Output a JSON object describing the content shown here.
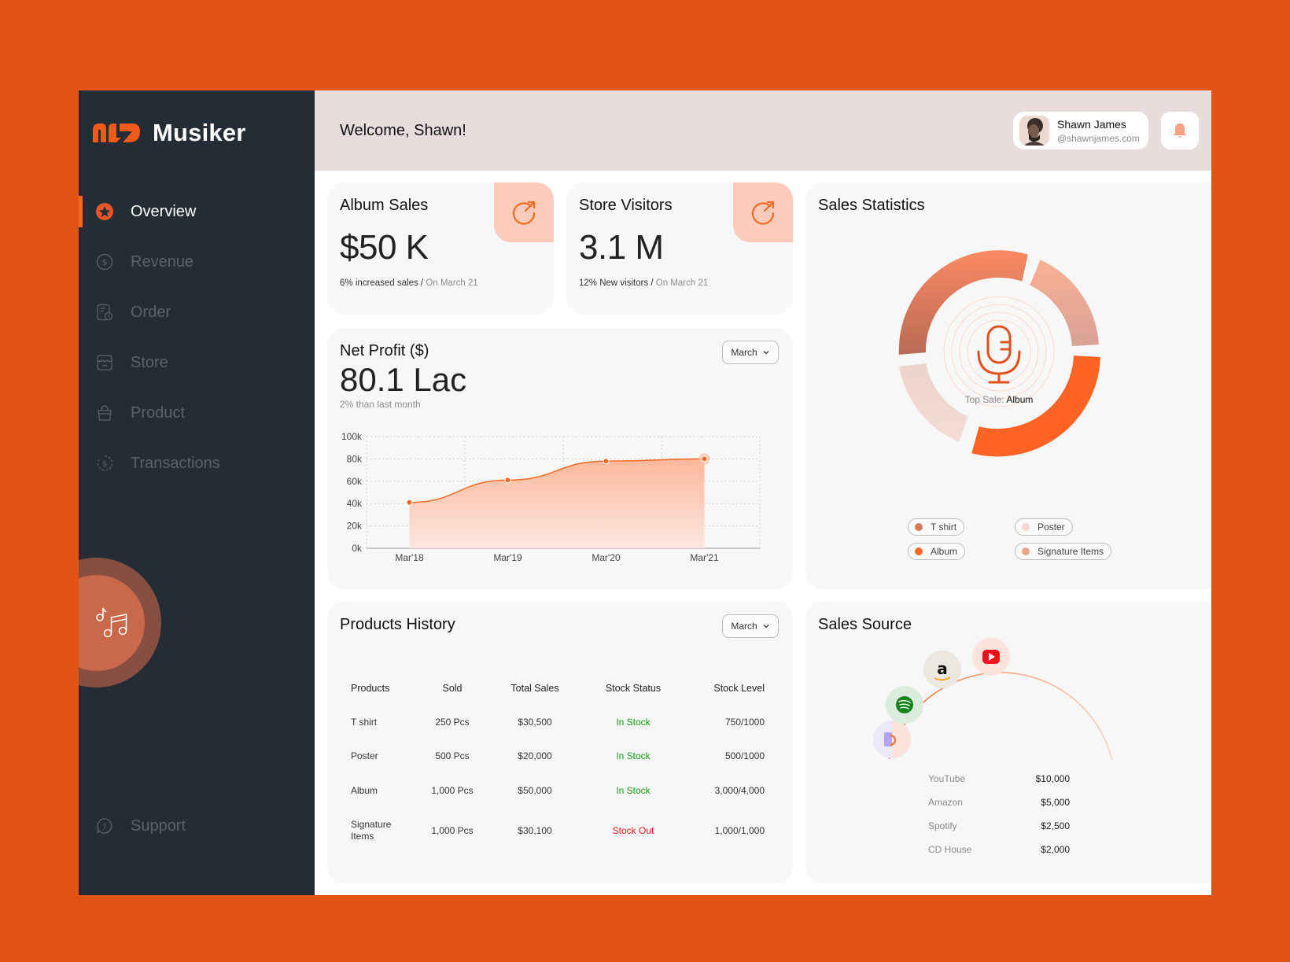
{
  "app": {
    "name": "Musiker",
    "brand_color": "#f26a21",
    "background_color": "#e25413",
    "sidebar_color": "#242c35"
  },
  "sidebar": {
    "items": [
      {
        "label": "Overview",
        "icon": "star-badge-icon",
        "active": true
      },
      {
        "label": "Revenue",
        "icon": "dollar-circle-icon",
        "active": false
      },
      {
        "label": "Order",
        "icon": "order-clock-icon",
        "active": false
      },
      {
        "label": "Store",
        "icon": "store-icon",
        "active": false
      },
      {
        "label": "Product",
        "icon": "shopping-bag-icon",
        "active": false
      },
      {
        "label": "Transactions",
        "icon": "dollar-refresh-icon",
        "active": false
      }
    ],
    "support_label": "Support",
    "music_icon": "music-notes-icon"
  },
  "header": {
    "welcome": "Welcome, Shawn!",
    "user": {
      "name": "Shawn James",
      "email": "@shawnjames.com"
    },
    "notification_icon": "bell-icon"
  },
  "album_sales": {
    "title": "Album Sales",
    "value": "$50 K",
    "note": "6% increased sales / ",
    "note_date": "On March 21"
  },
  "store_visitors": {
    "title": "Store Visitors",
    "value": "3.1 M",
    "note": "12% New visitors / ",
    "note_date": "On March 21"
  },
  "net_profit": {
    "title": "Net Profit ($)",
    "value": "80.1 Lac",
    "sub": "2% than last month",
    "dropdown": "March"
  },
  "chart_data": {
    "type": "area",
    "title": "Net Profit ($)",
    "categories": [
      "Mar'18",
      "Mar'19",
      "Mar'20",
      "Mar'21"
    ],
    "values": [
      41000,
      61000,
      78000,
      80000
    ],
    "yticks": [
      "0k",
      "20k",
      "40k",
      "60k",
      "80k",
      "100k"
    ],
    "ylim": [
      0,
      100000
    ],
    "grid": true,
    "color": "#f26a21"
  },
  "sales_statistics": {
    "title": "Sales Statistics",
    "center_label": "Top Sale: ",
    "center_value": "Album",
    "legend": [
      {
        "label": "T shirt",
        "color": "#d9785a"
      },
      {
        "label": "Poster",
        "color": "#f3d7cf"
      },
      {
        "label": "Album",
        "color": "#ff6726"
      },
      {
        "label": "Signature Items",
        "color": "#eda58d"
      }
    ]
  },
  "products_history": {
    "title": "Products History",
    "dropdown": "March",
    "columns": [
      "Products",
      "Sold",
      "Total Sales",
      "Stock Status",
      "Stock Level"
    ],
    "rows": [
      {
        "product": "T shirt",
        "sold": "250 Pcs",
        "total": "$30,500",
        "status": "In Stock",
        "level": "750/1000"
      },
      {
        "product": "Poster",
        "sold": "500 Pcs",
        "total": "$20,000",
        "status": "In Stock",
        "level": "500/1000"
      },
      {
        "product": "Album",
        "sold": "1,000 Pcs",
        "total": "$50,000",
        "status": "In Stock",
        "level": "3,000/4,000"
      },
      {
        "product": "Signature Items",
        "sold": "1,000 Pcs",
        "total": "$30,100",
        "status": "Stock Out",
        "level": "1,000/1,000"
      }
    ]
  },
  "sales_source": {
    "title": "Sales Source",
    "sources": [
      {
        "name": "YouTube",
        "value": "$10,000"
      },
      {
        "name": "Amazon",
        "value": "$5,000"
      },
      {
        "name": "Spotify",
        "value": "$2,500"
      },
      {
        "name": "CD House",
        "value": "$2,000"
      }
    ]
  }
}
